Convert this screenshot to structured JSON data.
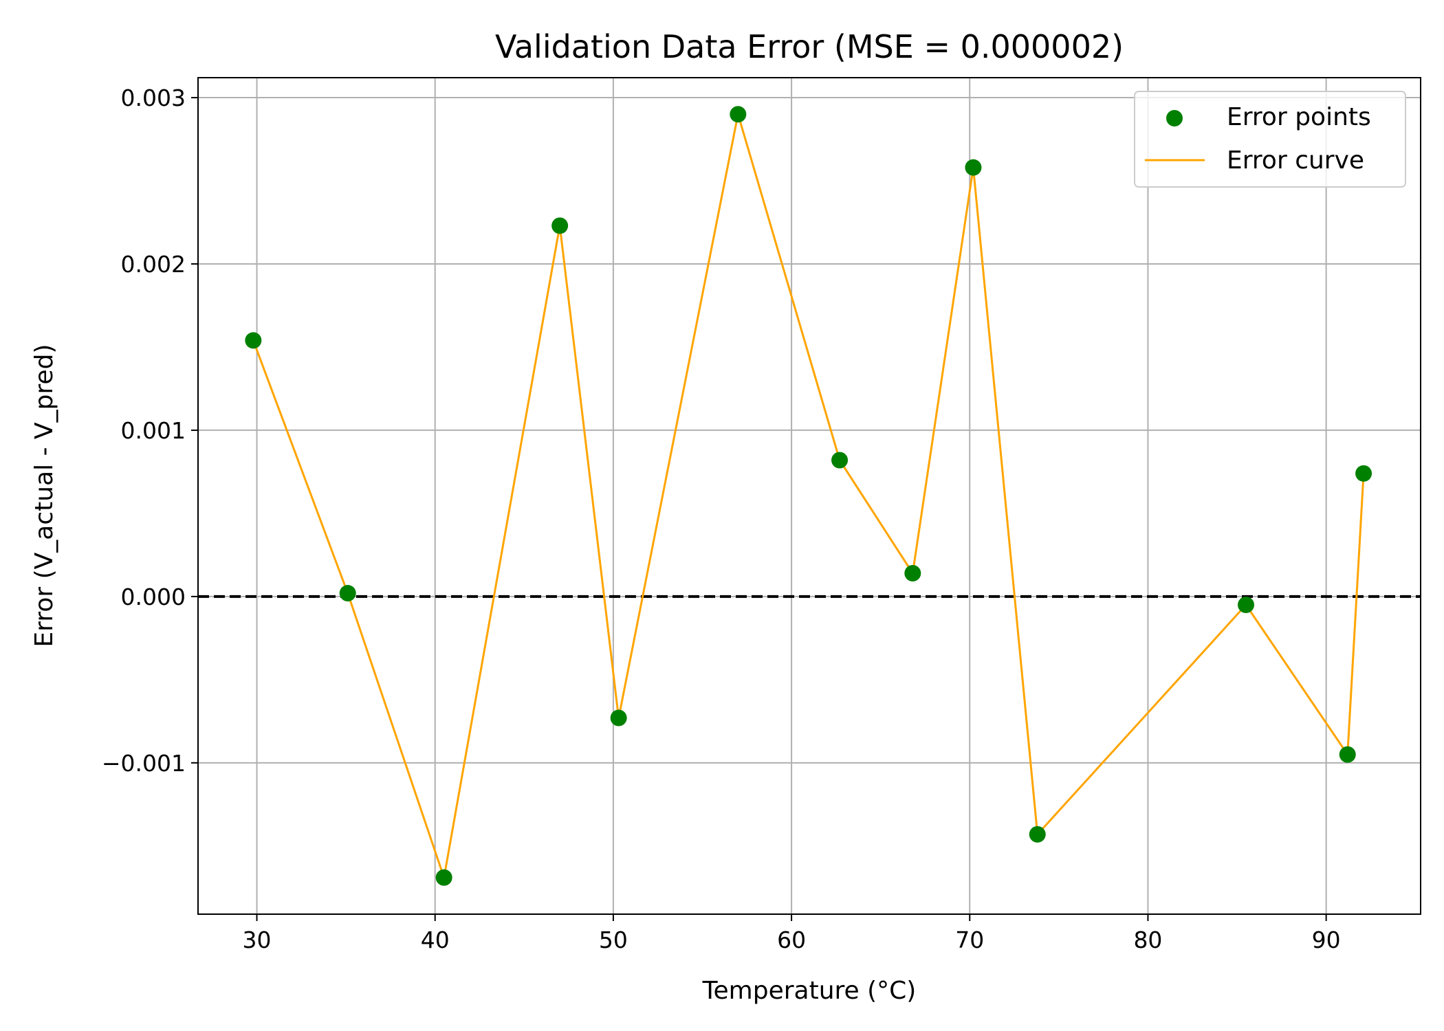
{
  "chart_data": {
    "type": "scatter",
    "title": "Validation Data Error (MSE = 0.000002)",
    "xlabel": "Temperature (°C)",
    "ylabel": "Error (V_actual - V_pred)",
    "xlim": [
      26.7,
      95.3
    ],
    "ylim": [
      -0.00191,
      0.00312
    ],
    "xticks": [
      30,
      40,
      50,
      60,
      70,
      80,
      90
    ],
    "xtick_labels": [
      "30",
      "40",
      "50",
      "60",
      "70",
      "80",
      "90"
    ],
    "yticks": [
      -0.001,
      0.0,
      0.001,
      0.002,
      0.003
    ],
    "ytick_labels": [
      "−0.001",
      "0.000",
      "0.001",
      "0.002",
      "0.003"
    ],
    "grid": true,
    "reference_line": {
      "y": 0,
      "style": "dashed",
      "color": "#000000"
    },
    "legend": {
      "position": "top-right"
    },
    "series": [
      {
        "name": "Error points",
        "kind": "scatter",
        "color": "#008000",
        "x": [
          29.8,
          35.1,
          40.5,
          47.0,
          50.3,
          57.0,
          62.7,
          66.8,
          70.2,
          73.8,
          85.5,
          91.2,
          92.1
        ],
        "y": [
          0.00154,
          2e-05,
          -0.00169,
          0.00223,
          -0.00073,
          0.0029,
          0.00082,
          0.00014,
          0.00258,
          -0.00143,
          -5e-05,
          -0.00095,
          0.00074
        ]
      },
      {
        "name": "Error curve",
        "kind": "line",
        "color": "#FFA500",
        "x": [
          29.8,
          35.1,
          40.5,
          47.0,
          50.3,
          57.0,
          62.7,
          66.8,
          70.2,
          73.8,
          85.5,
          91.2,
          92.1
        ],
        "y": [
          0.00154,
          2e-05,
          -0.00169,
          0.00223,
          -0.00073,
          0.0029,
          0.00082,
          0.00014,
          0.00258,
          -0.00143,
          -5e-05,
          -0.00095,
          0.00074
        ]
      }
    ]
  }
}
